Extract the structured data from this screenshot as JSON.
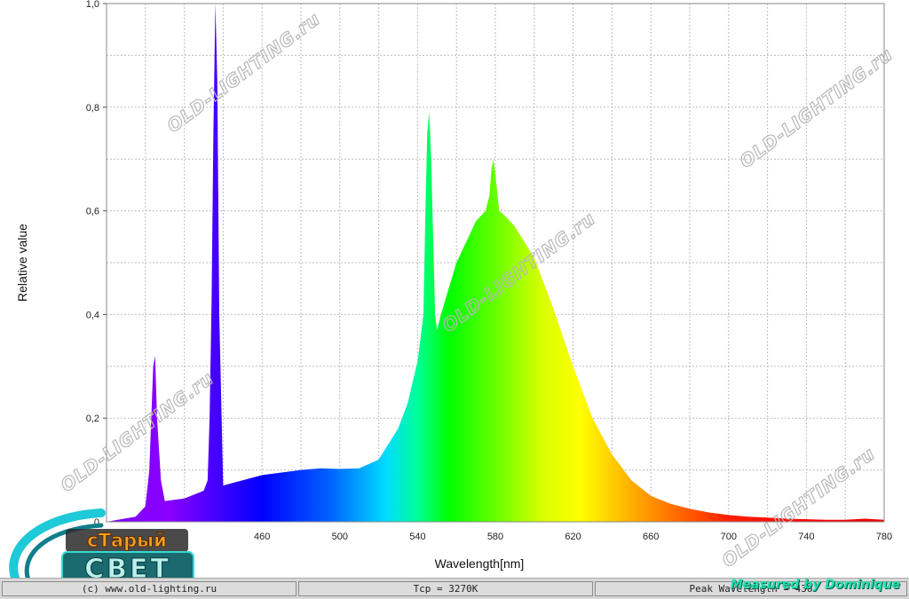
{
  "chart_data": {
    "type": "area",
    "xlabel": "Wavelength[nm]",
    "ylabel": "Relative value",
    "xlim": [
      380,
      780
    ],
    "ylim": [
      0,
      1
    ],
    "x_ticks": [
      460,
      500,
      540,
      580,
      620,
      660,
      700,
      740,
      780
    ],
    "x_tick_labels": [
      "460",
      "500",
      "540",
      "580",
      "620",
      "660",
      "700",
      "740",
      "780"
    ],
    "y_ticks": [
      0.2,
      0.4,
      0.6,
      0.8,
      1.0
    ],
    "y_tick_labels": [
      "0,2",
      "0,4",
      "0,6",
      "0,8",
      "1,0"
    ],
    "y_zero_label": "0",
    "grid": true,
    "fill": "spectral-rainbow",
    "x": [
      380,
      395,
      400,
      402,
      404,
      405,
      406,
      408,
      410,
      420,
      430,
      432,
      433,
      434,
      435,
      436,
      437,
      438,
      440,
      450,
      460,
      470,
      480,
      490,
      500,
      510,
      520,
      530,
      535,
      540,
      543,
      544,
      545,
      546,
      547,
      548,
      549,
      550,
      552,
      560,
      570,
      575,
      577,
      578,
      579,
      580,
      582,
      585,
      590,
      600,
      610,
      620,
      630,
      640,
      650,
      660,
      670,
      680,
      690,
      700,
      710,
      720,
      730,
      740,
      750,
      760,
      770,
      780
    ],
    "y": [
      0.0,
      0.01,
      0.03,
      0.1,
      0.3,
      0.32,
      0.2,
      0.08,
      0.04,
      0.045,
      0.06,
      0.08,
      0.2,
      0.42,
      0.75,
      1.0,
      0.85,
      0.4,
      0.07,
      0.08,
      0.09,
      0.095,
      0.1,
      0.103,
      0.102,
      0.103,
      0.12,
      0.18,
      0.23,
      0.31,
      0.4,
      0.6,
      0.75,
      0.79,
      0.7,
      0.55,
      0.4,
      0.37,
      0.4,
      0.5,
      0.58,
      0.6,
      0.63,
      0.68,
      0.7,
      0.67,
      0.6,
      0.59,
      0.57,
      0.51,
      0.41,
      0.3,
      0.2,
      0.13,
      0.08,
      0.05,
      0.035,
      0.025,
      0.018,
      0.013,
      0.01,
      0.008,
      0.006,
      0.005,
      0.004,
      0.004,
      0.006,
      0.004
    ]
  },
  "watermark_text": "OLD-LIGHTING.ru",
  "status_bar": {
    "copyright": "(c) www.old-lighting.ru",
    "tcp": "Tcp = 3270K",
    "peak": "Peak Wavelength = 436"
  },
  "credit": "Measured by Dominique",
  "logo": {
    "line1": "сТарый",
    "line2": "СВЕТ"
  }
}
